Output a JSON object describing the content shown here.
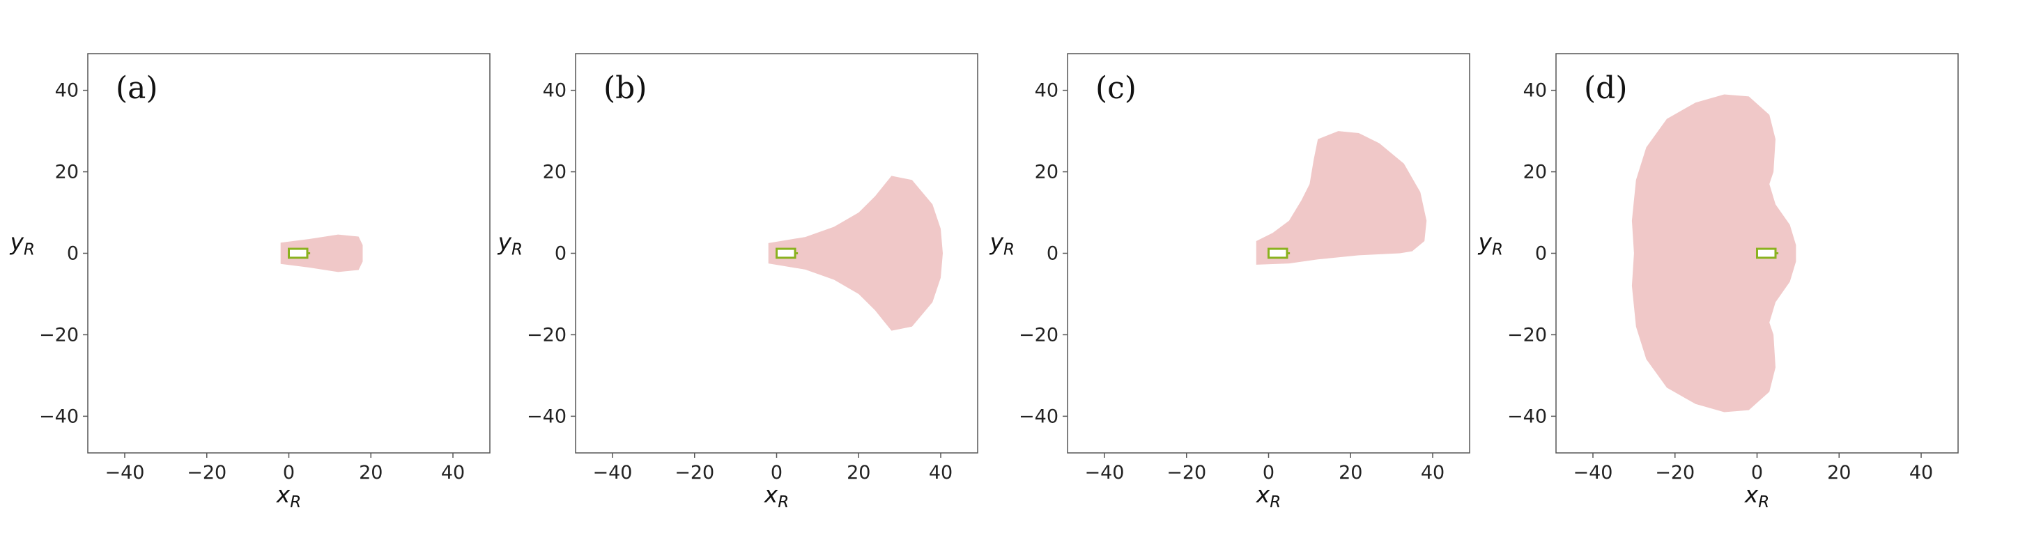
{
  "colors": {
    "region_fill": "#f0c8c8",
    "vehicle_outline": "#8ab21f",
    "vehicle_fill": "#ffffff",
    "frame": "#555555",
    "tick": "#555555"
  },
  "chart_data": [
    {
      "type": "area",
      "panel_label": "(a)",
      "xlabel": "x",
      "xlabel_sub": "R",
      "ylabel": "y",
      "ylabel_sub": "R",
      "xlim": [
        -49,
        49
      ],
      "ylim": [
        -49,
        49
      ],
      "xticks": [
        -40,
        -20,
        0,
        20,
        40
      ],
      "yticks": [
        -40,
        -20,
        0,
        20,
        40
      ],
      "xtick_labels": [
        "−40",
        "−20",
        "0",
        "20",
        "40"
      ],
      "ytick_labels": [
        "−40",
        "−20",
        "0",
        "20",
        "40"
      ],
      "grid": false,
      "region": {
        "x": [
          -2,
          5,
          12,
          17,
          18,
          18,
          17,
          12,
          5,
          -2
        ],
        "y": [
          2.6,
          3.5,
          4.6,
          4.1,
          2,
          -2,
          -4.1,
          -4.6,
          -3.5,
          -2.6
        ]
      },
      "vehicle": {
        "x_min": 0,
        "x_max": 4.5,
        "y_min": -1.1,
        "y_max": 1.1,
        "arrow_tip": 5.2
      }
    },
    {
      "type": "area",
      "panel_label": "(b)",
      "xlabel": "x",
      "xlabel_sub": "R",
      "ylabel": "y",
      "ylabel_sub": "R",
      "xlim": [
        -49,
        49
      ],
      "ylim": [
        -49,
        49
      ],
      "xticks": [
        -40,
        -20,
        0,
        20,
        40
      ],
      "yticks": [
        -40,
        -20,
        0,
        20,
        40
      ],
      "xtick_labels": [
        "−40",
        "−20",
        "0",
        "20",
        "40"
      ],
      "ytick_labels": [
        "−40",
        "−20",
        "0",
        "20",
        "40"
      ],
      "grid": false,
      "region": {
        "x": [
          -2,
          7,
          14,
          20,
          24,
          28,
          33,
          38,
          40,
          40.5,
          40,
          38,
          33,
          28,
          24,
          20,
          14,
          7,
          -2
        ],
        "y": [
          2.5,
          4,
          6.5,
          10,
          14,
          19,
          18,
          12,
          6,
          0,
          -6,
          -12,
          -18,
          -19,
          -14,
          -10,
          -6.5,
          -4,
          -2.5
        ]
      },
      "vehicle": {
        "x_min": 0,
        "x_max": 4.5,
        "y_min": -1.1,
        "y_max": 1.1,
        "arrow_tip": 5.2
      }
    },
    {
      "type": "area",
      "panel_label": "(c)",
      "xlabel": "x",
      "xlabel_sub": "R",
      "ylabel": "y",
      "ylabel_sub": "R",
      "xlim": [
        -49,
        49
      ],
      "ylim": [
        -49,
        49
      ],
      "xticks": [
        -40,
        -20,
        0,
        20,
        40
      ],
      "yticks": [
        -40,
        -20,
        0,
        20,
        40
      ],
      "xtick_labels": [
        "−40",
        "−20",
        "0",
        "20",
        "40"
      ],
      "ytick_labels": [
        "−40",
        "−20",
        "0",
        "20",
        "40"
      ],
      "grid": false,
      "region": {
        "x": [
          -3,
          1,
          5,
          8,
          10,
          11,
          12,
          17,
          22,
          27,
          33,
          37,
          38.5,
          38,
          35,
          32,
          22,
          12,
          5,
          -3
        ],
        "y": [
          3,
          5,
          8,
          13,
          17,
          23,
          28,
          30,
          29.5,
          27,
          22,
          15,
          8,
          3,
          0.5,
          0,
          -0.5,
          -1.5,
          -2.5,
          -2.8
        ]
      },
      "vehicle": {
        "x_min": 0,
        "x_max": 4.5,
        "y_min": -1.1,
        "y_max": 1.1,
        "arrow_tip": 5.2
      }
    },
    {
      "type": "area",
      "panel_label": "(d)",
      "xlabel": "x",
      "xlabel_sub": "R",
      "ylabel": "y",
      "ylabel_sub": "R",
      "xlim": [
        -49,
        49
      ],
      "ylim": [
        -49,
        49
      ],
      "xticks": [
        -40,
        -20,
        0,
        20,
        40
      ],
      "yticks": [
        -40,
        -20,
        0,
        20,
        40
      ],
      "xtick_labels": [
        "−40",
        "−20",
        "0",
        "20",
        "40"
      ],
      "ytick_labels": [
        "−40",
        "−20",
        "0",
        "20",
        "40"
      ],
      "grid": false,
      "region": {
        "x": [
          -2,
          -8,
          -15,
          -22,
          -27,
          -29.5,
          -30.5,
          -30,
          -30.5,
          -29.5,
          -27,
          -22,
          -15,
          -8,
          -2,
          3,
          4.5,
          4,
          3,
          4.5,
          8,
          9.5,
          9.5,
          8,
          4.5,
          3,
          4,
          4.5,
          3
        ],
        "y": [
          38.5,
          39,
          37,
          33,
          26,
          18,
          8,
          0,
          -8,
          -18,
          -26,
          -33,
          -37,
          -39,
          -38.5,
          -34,
          -28,
          -20,
          -17,
          -12,
          -7,
          -2,
          2,
          7,
          12,
          17,
          20,
          28,
          34
        ]
      },
      "vehicle": {
        "x_min": 0,
        "x_max": 4.5,
        "y_min": -1.1,
        "y_max": 1.1,
        "arrow_tip": 5.2
      }
    }
  ]
}
